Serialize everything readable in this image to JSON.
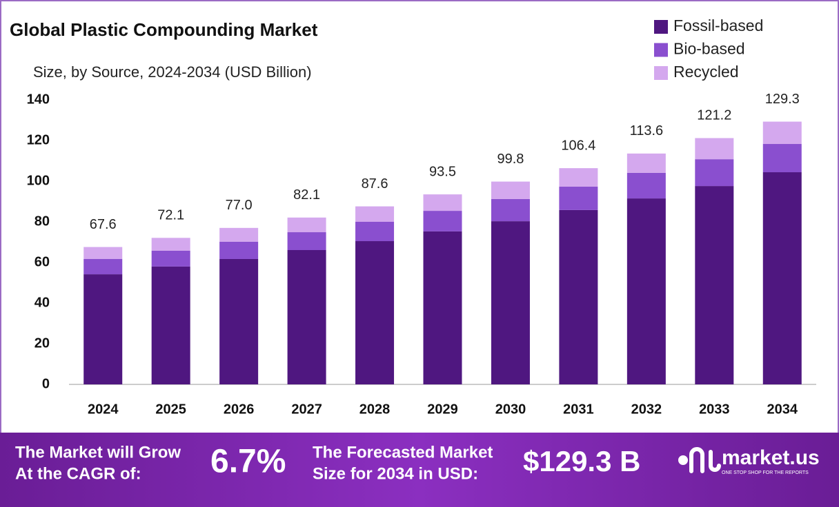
{
  "chart_data": {
    "type": "stacked-bar",
    "title": "Global Plastic Compounding Market",
    "subtitle": "Size, by Source, 2024-2034 (USD Billion)",
    "categories": [
      "2024",
      "2025",
      "2026",
      "2027",
      "2028",
      "2029",
      "2030",
      "2031",
      "2032",
      "2033",
      "2034"
    ],
    "series": [
      {
        "name": "Fossil-based",
        "color": "#4f1780",
        "values": [
          54.2,
          58.0,
          61.7,
          66.1,
          70.5,
          75.3,
          80.3,
          85.8,
          91.5,
          97.6,
          104.4
        ]
      },
      {
        "name": "Bio-based",
        "color": "#8a4fcf",
        "values": [
          7.5,
          7.8,
          8.5,
          8.8,
          9.5,
          10.1,
          10.9,
          11.5,
          12.6,
          13.2,
          13.9
        ]
      },
      {
        "name": "Recycled",
        "color": "#d4a8ee",
        "values": [
          5.9,
          6.3,
          6.8,
          7.2,
          7.6,
          8.1,
          8.6,
          9.1,
          9.5,
          10.4,
          11.0
        ]
      }
    ],
    "totals": {
      "values": [
        67.6,
        72.1,
        77.0,
        82.1,
        87.6,
        93.5,
        99.8,
        106.4,
        113.6,
        121.2,
        129.3
      ],
      "value_labels": [
        "67.6",
        "72.1",
        "77.0",
        "82.1",
        "87.6",
        "93.5",
        "99.8",
        "106.4",
        "113.6",
        "121.2",
        "129.3"
      ]
    },
    "ylim": [
      0,
      140
    ],
    "yticks": [
      0,
      20,
      40,
      60,
      80,
      100,
      120,
      140
    ],
    "grid": false,
    "legend": "top-right"
  },
  "footer": {
    "cagr_label": [
      "The Market will Grow",
      "At the CAGR of:"
    ],
    "cagr": "6.7%",
    "forecast_label": [
      "The Forecasted Market",
      "Size for 2034 in USD:"
    ],
    "forecast": "$129.3 B",
    "brand": "market.us",
    "tagline": "ONE STOP SHOP FOR THE REPORTS"
  }
}
